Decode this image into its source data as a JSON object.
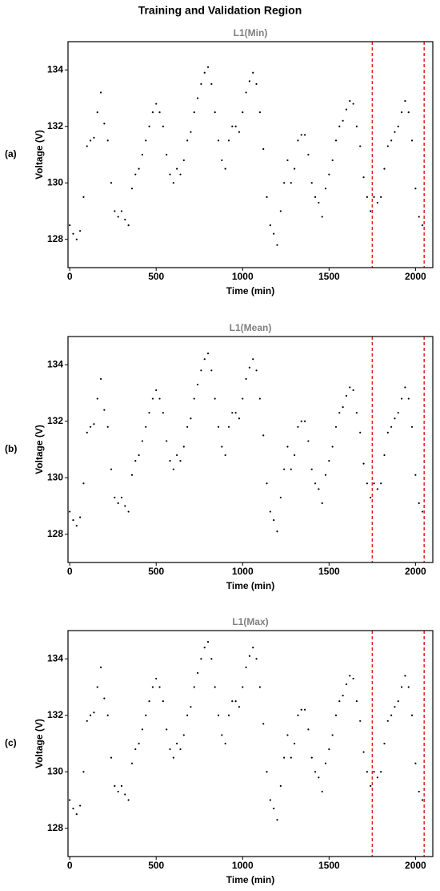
{
  "title": "Training and Validation Region",
  "chart_data": [
    {
      "type": "scatter",
      "title": "L1(Min)",
      "panel_label": "(a)",
      "xlabel": "Time (min)",
      "ylabel": "Voltage (V)",
      "color": "#000000",
      "vlines": [
        1750,
        2050
      ],
      "vline_color": "#e02020",
      "xlim": [
        -10,
        2100
      ],
      "ylim": [
        127,
        135
      ],
      "xticks": [
        0,
        500,
        1000,
        1500,
        2000
      ],
      "yticks": [
        128,
        130,
        132,
        134
      ],
      "x": [
        0,
        20,
        40,
        60,
        80,
        100,
        120,
        140,
        160,
        180,
        200,
        220,
        240,
        260,
        280,
        300,
        320,
        340,
        360,
        380,
        400,
        420,
        440,
        460,
        480,
        500,
        520,
        540,
        560,
        580,
        600,
        620,
        640,
        660,
        680,
        700,
        720,
        740,
        760,
        780,
        800,
        820,
        840,
        860,
        880,
        900,
        920,
        940,
        960,
        980,
        1000,
        1020,
        1040,
        1060,
        1080,
        1100,
        1120,
        1140,
        1160,
        1180,
        1200,
        1220,
        1240,
        1260,
        1280,
        1300,
        1320,
        1340,
        1360,
        1380,
        1400,
        1420,
        1440,
        1460,
        1480,
        1500,
        1520,
        1540,
        1560,
        1580,
        1600,
        1620,
        1640,
        1660,
        1680,
        1700,
        1720,
        1740,
        1760,
        1780,
        1800,
        1820,
        1840,
        1860,
        1880,
        1900,
        1920,
        1940,
        1960,
        1980,
        2000,
        2020,
        2040
      ],
      "values": [
        128.5,
        128.2,
        128.0,
        128.3,
        129.5,
        131.3,
        131.5,
        131.6,
        132.5,
        133.2,
        132.1,
        131.5,
        130.0,
        129.0,
        128.8,
        129.0,
        128.7,
        128.5,
        129.8,
        130.3,
        130.5,
        131.0,
        131.5,
        132.0,
        132.5,
        132.8,
        132.5,
        132.0,
        131.0,
        130.3,
        130.0,
        130.5,
        130.3,
        130.8,
        131.5,
        131.8,
        132.5,
        133.0,
        133.5,
        133.9,
        134.1,
        133.5,
        132.5,
        131.5,
        130.8,
        130.5,
        131.5,
        132.0,
        132.0,
        131.8,
        132.5,
        133.2,
        133.6,
        133.9,
        133.5,
        132.5,
        131.2,
        129.5,
        128.5,
        128.2,
        127.8,
        129.0,
        130.0,
        130.8,
        130.0,
        130.5,
        131.5,
        131.7,
        131.7,
        131.0,
        130.0,
        129.5,
        129.3,
        128.8,
        129.8,
        130.3,
        130.8,
        131.5,
        132.0,
        132.2,
        132.6,
        132.9,
        132.8,
        132.0,
        131.3,
        130.2,
        129.5,
        129.0,
        129.5,
        129.3,
        129.5,
        130.5,
        131.3,
        131.5,
        131.8,
        132.0,
        132.5,
        132.9,
        132.5,
        131.5,
        129.8,
        128.8,
        128.5
      ]
    },
    {
      "type": "scatter",
      "title": "L1(Mean)",
      "panel_label": "(b)",
      "xlabel": "Time (min)",
      "ylabel": "Voltage (V)",
      "color": "#000000",
      "vlines": [
        1750,
        2050
      ],
      "vline_color": "#e02020",
      "xlim": [
        -10,
        2100
      ],
      "ylim": [
        127,
        135
      ],
      "xticks": [
        0,
        500,
        1000,
        1500,
        2000
      ],
      "yticks": [
        128,
        130,
        132,
        134
      ],
      "x": [
        0,
        20,
        40,
        60,
        80,
        100,
        120,
        140,
        160,
        180,
        200,
        220,
        240,
        260,
        280,
        300,
        320,
        340,
        360,
        380,
        400,
        420,
        440,
        460,
        480,
        500,
        520,
        540,
        560,
        580,
        600,
        620,
        640,
        660,
        680,
        700,
        720,
        740,
        760,
        780,
        800,
        820,
        840,
        860,
        880,
        900,
        920,
        940,
        960,
        980,
        1000,
        1020,
        1040,
        1060,
        1080,
        1100,
        1120,
        1140,
        1160,
        1180,
        1200,
        1220,
        1240,
        1260,
        1280,
        1300,
        1320,
        1340,
        1360,
        1380,
        1400,
        1420,
        1440,
        1460,
        1480,
        1500,
        1520,
        1540,
        1560,
        1580,
        1600,
        1620,
        1640,
        1660,
        1680,
        1700,
        1720,
        1740,
        1760,
        1780,
        1800,
        1820,
        1840,
        1860,
        1880,
        1900,
        1920,
        1940,
        1960,
        1980,
        2000,
        2020,
        2040
      ],
      "values": [
        128.8,
        128.5,
        128.3,
        128.6,
        129.8,
        131.6,
        131.8,
        131.9,
        132.8,
        133.5,
        132.4,
        131.8,
        130.3,
        129.3,
        129.1,
        129.3,
        129.0,
        128.8,
        130.1,
        130.6,
        130.8,
        131.3,
        131.8,
        132.3,
        132.8,
        133.1,
        132.8,
        132.3,
        131.3,
        130.6,
        130.3,
        130.8,
        130.6,
        131.1,
        131.8,
        132.1,
        132.8,
        133.3,
        133.8,
        134.2,
        134.4,
        133.8,
        132.8,
        131.8,
        131.1,
        130.8,
        131.8,
        132.3,
        132.3,
        132.1,
        132.8,
        133.5,
        133.9,
        134.2,
        133.8,
        132.8,
        131.5,
        129.8,
        128.8,
        128.5,
        128.1,
        129.3,
        130.3,
        131.1,
        130.3,
        130.8,
        131.8,
        132.0,
        132.0,
        131.3,
        130.3,
        129.8,
        129.6,
        129.1,
        130.1,
        130.6,
        131.1,
        131.8,
        132.3,
        132.5,
        132.9,
        133.2,
        133.1,
        132.3,
        131.6,
        130.5,
        129.8,
        129.3,
        129.8,
        129.6,
        129.8,
        130.8,
        131.6,
        131.8,
        132.1,
        132.3,
        132.8,
        133.2,
        132.8,
        131.8,
        130.1,
        129.1,
        128.8
      ]
    },
    {
      "type": "scatter",
      "title": "L1(Max)",
      "panel_label": "(c)",
      "xlabel": "Time (min)",
      "ylabel": "Voltage (V)",
      "color": "#000000",
      "vlines": [
        1750,
        2050
      ],
      "vline_color": "#e02020",
      "xlim": [
        -10,
        2100
      ],
      "ylim": [
        127,
        135
      ],
      "xticks": [
        0,
        500,
        1000,
        1500,
        2000
      ],
      "yticks": [
        128,
        130,
        132,
        134
      ],
      "x": [
        0,
        20,
        40,
        60,
        80,
        100,
        120,
        140,
        160,
        180,
        200,
        220,
        240,
        260,
        280,
        300,
        320,
        340,
        360,
        380,
        400,
        420,
        440,
        460,
        480,
        500,
        520,
        540,
        560,
        580,
        600,
        620,
        640,
        660,
        680,
        700,
        720,
        740,
        760,
        780,
        800,
        820,
        840,
        860,
        880,
        900,
        920,
        940,
        960,
        980,
        1000,
        1020,
        1040,
        1060,
        1080,
        1100,
        1120,
        1140,
        1160,
        1180,
        1200,
        1220,
        1240,
        1260,
        1280,
        1300,
        1320,
        1340,
        1360,
        1380,
        1400,
        1420,
        1440,
        1460,
        1480,
        1500,
        1520,
        1540,
        1560,
        1580,
        1600,
        1620,
        1640,
        1660,
        1680,
        1700,
        1720,
        1740,
        1760,
        1780,
        1800,
        1820,
        1840,
        1860,
        1880,
        1900,
        1920,
        1940,
        1960,
        1980,
        2000,
        2020,
        2040
      ],
      "values": [
        129.0,
        128.7,
        128.5,
        128.8,
        130.0,
        131.8,
        132.0,
        132.1,
        133.0,
        133.7,
        132.6,
        132.0,
        130.5,
        129.5,
        129.3,
        129.5,
        129.2,
        129.0,
        130.3,
        130.8,
        131.0,
        131.5,
        132.0,
        132.5,
        133.0,
        133.3,
        133.0,
        132.5,
        131.5,
        130.8,
        130.5,
        131.0,
        130.8,
        131.3,
        132.0,
        132.3,
        133.0,
        133.5,
        134.0,
        134.4,
        134.6,
        134.0,
        133.0,
        132.0,
        131.3,
        131.0,
        132.0,
        132.5,
        132.5,
        132.3,
        133.0,
        133.7,
        134.1,
        134.4,
        134.0,
        133.0,
        131.7,
        130.0,
        129.0,
        128.7,
        128.3,
        129.5,
        130.5,
        131.3,
        130.5,
        131.0,
        132.0,
        132.2,
        132.2,
        131.5,
        130.5,
        130.0,
        129.8,
        129.3,
        130.3,
        130.8,
        131.3,
        132.0,
        132.5,
        132.7,
        133.1,
        133.4,
        133.3,
        132.5,
        131.8,
        130.7,
        130.0,
        129.5,
        130.0,
        129.8,
        130.0,
        131.0,
        131.8,
        132.0,
        132.3,
        132.5,
        133.0,
        133.4,
        133.0,
        132.0,
        130.3,
        129.3,
        129.0
      ]
    }
  ]
}
